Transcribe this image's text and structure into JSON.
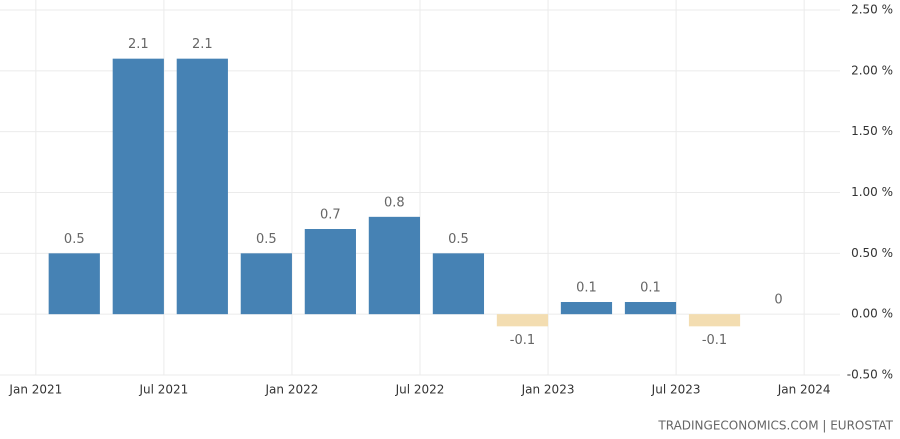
{
  "chart_data": {
    "type": "bar",
    "x": [
      2021.15,
      2021.4,
      2021.65,
      2021.9,
      2022.15,
      2022.4,
      2022.65,
      2022.9,
      2023.15,
      2023.4,
      2023.65,
      2023.9
    ],
    "values": [
      0.5,
      2.1,
      2.1,
      0.5,
      0.7,
      0.8,
      0.5,
      -0.1,
      0.1,
      0.1,
      -0.1,
      0
    ],
    "color": "#4682b4",
    "negative_color": "#f3ddb1",
    "xlim": [
      2020.86,
      2024.14
    ],
    "xticks": [
      {
        "value": 2021,
        "label": "Jan 2021"
      },
      {
        "value": 2021.5,
        "label": "Jul 2021"
      },
      {
        "value": 2022,
        "label": "Jan 2022"
      },
      {
        "value": 2022.5,
        "label": "Jul 2022"
      },
      {
        "value": 2023,
        "label": "Jan 2023"
      },
      {
        "value": 2023.5,
        "label": "Jul 2023"
      },
      {
        "value": 2024,
        "label": "Jan 2024"
      }
    ],
    "ylim": [
      -0.5,
      2.5
    ],
    "yticks": [
      {
        "value": 2.5,
        "label": "2.50 %"
      },
      {
        "value": 2,
        "label": "2.00 %"
      },
      {
        "value": 1.5,
        "label": "1.50 %"
      },
      {
        "value": 1,
        "label": "1.00 %"
      },
      {
        "value": 0.5,
        "label": "0.50 %"
      },
      {
        "value": 0,
        "label": "0.00 %"
      },
      {
        "value": -0.5,
        "label": "-0.50 %"
      }
    ],
    "grid": true,
    "source": "TRADINGECONOMICS.COM | EUROSTAT"
  }
}
